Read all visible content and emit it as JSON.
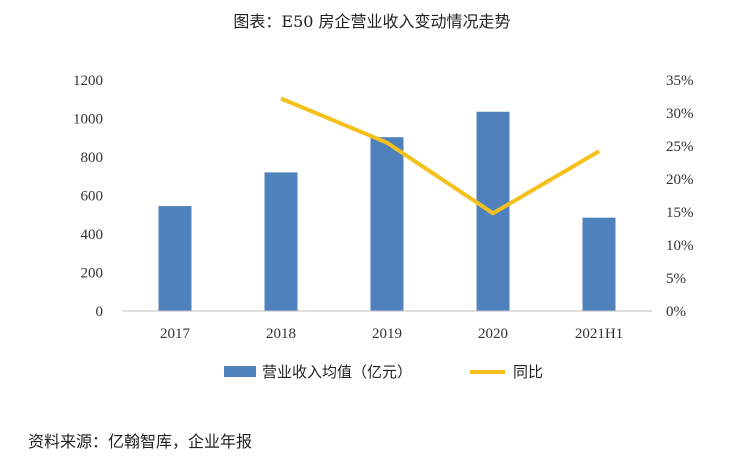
{
  "title": "图表：E50 房企营业收入变动情况走势",
  "source": "资料来源：亿翰智库，企业年报",
  "colors": {
    "bar": "#4f81bd",
    "line": "#f5c01b",
    "axis": "#bfbfbf"
  },
  "chart_data": {
    "type": "bar",
    "categories": [
      "2017",
      "2018",
      "2019",
      "2020",
      "2021H1"
    ],
    "series": [
      {
        "name": "营业收入均值（亿元）",
        "type": "bar",
        "axis": "left",
        "values": [
          545,
          720,
          903,
          1035,
          485
        ]
      },
      {
        "name": "同比",
        "type": "line",
        "axis": "right",
        "values": [
          null,
          0.322,
          0.255,
          0.148,
          0.242
        ]
      }
    ],
    "y_left": {
      "ticks": [
        "0",
        "200",
        "400",
        "600",
        "800",
        "1000",
        "1200"
      ],
      "ylim": [
        0,
        1200
      ]
    },
    "y_right": {
      "ticks": [
        "0%",
        "5%",
        "10%",
        "15%",
        "20%",
        "25%",
        "30%",
        "35%"
      ],
      "ylim": [
        0,
        0.35
      ]
    },
    "grid": false,
    "legend_position": "bottom"
  }
}
